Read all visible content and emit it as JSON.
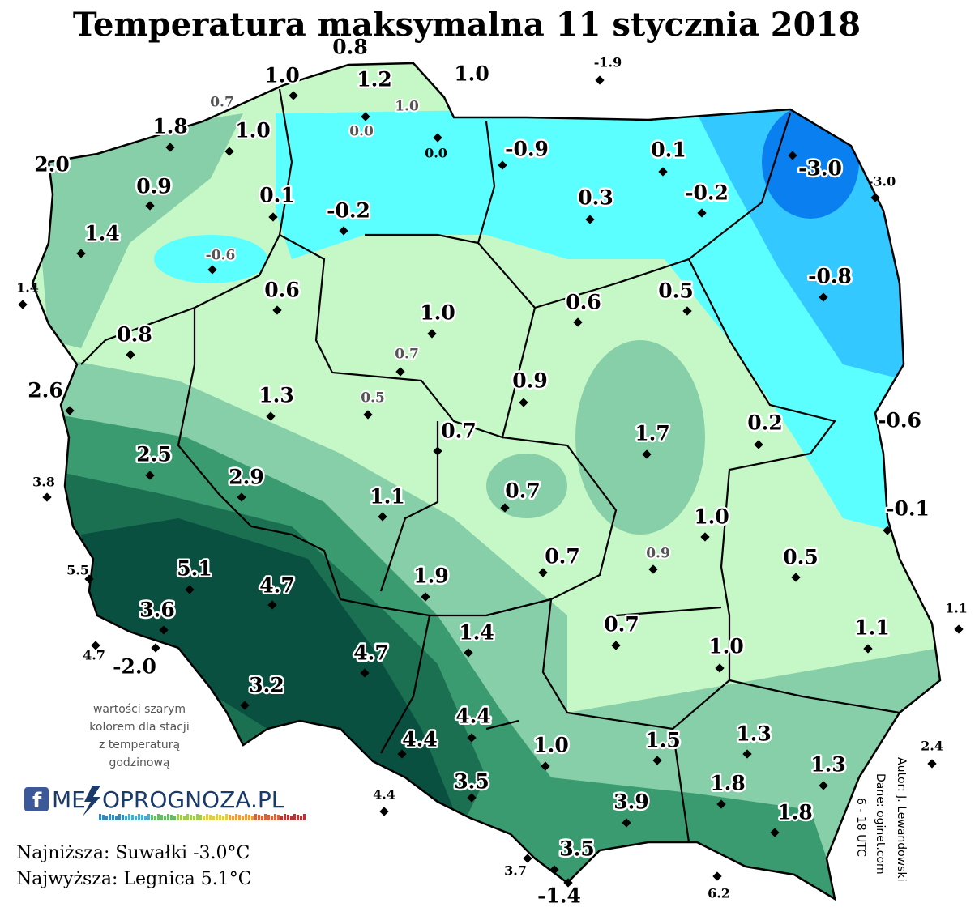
{
  "title": "Temperatura maksymalna 11 stycznia 2018",
  "stations": [
    {
      "label": "0.8"
    },
    {
      "label": "1.0"
    },
    {
      "label": "1.2"
    },
    {
      "label": "1.0"
    },
    {
      "label": "-1.9"
    },
    {
      "label": "0.7"
    },
    {
      "label": "1.0"
    },
    {
      "label": "1.8"
    },
    {
      "label": "1.0"
    },
    {
      "label": "0.0"
    },
    {
      "label": "0.0"
    },
    {
      "label": "-0.9"
    },
    {
      "label": "0.1"
    },
    {
      "label": "-3.0"
    },
    {
      "label": "-3.0"
    },
    {
      "label": "2.0"
    },
    {
      "label": "0.9"
    },
    {
      "label": "0.1"
    },
    {
      "label": "-0.2"
    },
    {
      "label": "0.3"
    },
    {
      "label": "-0.2"
    },
    {
      "label": "1.4"
    },
    {
      "label": "-0.6"
    },
    {
      "label": "1.4"
    },
    {
      "label": "-0.8"
    },
    {
      "label": "0.6"
    },
    {
      "label": "1.0"
    },
    {
      "label": "0.6"
    },
    {
      "label": "0.5"
    },
    {
      "label": "0.8"
    },
    {
      "label": "0.7"
    },
    {
      "label": "2.6"
    },
    {
      "label": "0.9"
    },
    {
      "label": "1.3"
    },
    {
      "label": "0.5"
    },
    {
      "label": "0.7"
    },
    {
      "label": "1.7"
    },
    {
      "label": "0.2"
    },
    {
      "label": "-0.6"
    },
    {
      "label": "3.8"
    },
    {
      "label": "2.5"
    },
    {
      "label": "2.9"
    },
    {
      "label": "1.1"
    },
    {
      "label": "0.7"
    },
    {
      "label": "1.0"
    },
    {
      "label": "-0.1"
    },
    {
      "label": "5.5"
    },
    {
      "label": "5.1"
    },
    {
      "label": "4.7"
    },
    {
      "label": "0.7"
    },
    {
      "label": "0.9"
    },
    {
      "label": "0.5"
    },
    {
      "label": "1.9"
    },
    {
      "label": "1.1"
    },
    {
      "label": "3.6"
    },
    {
      "label": "1.4"
    },
    {
      "label": "0.7"
    },
    {
      "label": "1.1"
    },
    {
      "label": "4.7"
    },
    {
      "label": "-2.0"
    },
    {
      "label": "1.0"
    },
    {
      "label": "4.7"
    },
    {
      "label": "3.2"
    },
    {
      "label": "4.4"
    },
    {
      "label": "4.4"
    },
    {
      "label": "1.0"
    },
    {
      "label": "1.5"
    },
    {
      "label": "1.3"
    },
    {
      "label": "2.4"
    },
    {
      "label": "1.3"
    },
    {
      "label": "3.5"
    },
    {
      "label": "1.8"
    },
    {
      "label": "4.4"
    },
    {
      "label": "3.9"
    },
    {
      "label": "1.8"
    },
    {
      "label": "3.5"
    },
    {
      "label": "3.7"
    },
    {
      "label": "-1.4"
    },
    {
      "label": "6.2"
    }
  ],
  "note": [
    "wartości szarym",
    "kolorem dla stacji",
    "z temperaturą",
    "godzinową"
  ],
  "logo": {
    "left": "ME",
    "right": "OPROGNOZA.PL"
  },
  "footer": [
    "Najniższa: Suwałki -3.0°C",
    "Najwyższa: Legnica 5.1°C"
  ],
  "credits": [
    "Autor: J. Lewandowski",
    "Dane: oginet.com",
    "6 - 18 UTC"
  ]
}
